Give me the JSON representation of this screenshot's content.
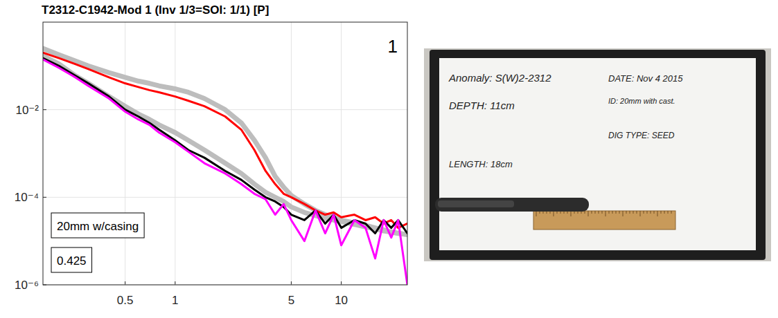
{
  "chart_data": {
    "type": "line",
    "title": "T2312-C1942-Mod 1 (Inv 1/3=SOI: 1/1) [P]",
    "panel_label": "1",
    "annotations": [
      "20mm w/casing",
      "0.425"
    ],
    "log": true,
    "grid": true,
    "x": [
      0.16,
      0.2,
      0.25,
      0.3,
      0.4,
      0.5,
      0.6,
      0.7,
      0.8,
      1,
      1.2,
      1.5,
      2,
      2.5,
      3,
      3.5,
      4,
      4.5,
      5,
      6,
      7,
      8,
      9,
      10,
      12,
      14,
      16,
      18,
      20,
      22,
      25
    ],
    "xlim": [
      0.16,
      25
    ],
    "xticks": [
      0.5,
      1,
      5,
      10
    ],
    "ylim": [
      1e-06,
      1
    ],
    "yticks": [
      {
        "value": 1e-06,
        "label": "10⁻⁶"
      },
      {
        "value": 0.0001,
        "label": "10⁻⁴"
      },
      {
        "value": 0.01,
        "label": "10⁻²"
      }
    ],
    "series": [
      {
        "color": "#bdbdbd",
        "values": [
          0.25,
          0.18,
          0.13,
          0.1,
          0.07,
          0.055,
          0.045,
          0.04,
          0.035,
          0.03,
          0.025,
          0.018,
          0.01,
          0.005,
          0.002,
          0.0008,
          0.0003,
          0.00017,
          0.00011,
          7e-05,
          5e-05,
          4e-05,
          3.5e-05,
          3e-05,
          2.6e-05,
          2.3e-05,
          2e-05,
          1.8e-05,
          1.6e-05,
          1.5e-05,
          1.4e-05
        ]
      },
      {
        "color": "#bdbdbd",
        "values": [
          0.17,
          0.11,
          0.06,
          0.04,
          0.02,
          0.012,
          0.008,
          0.006,
          0.0045,
          0.003,
          0.002,
          0.0012,
          0.0006,
          0.00035,
          0.0002,
          0.00013,
          0.0001,
          8e-05,
          6e-05,
          4.5e-05,
          3.8e-05,
          3.3e-05,
          3e-05,
          2.8e-05,
          2.4e-05,
          2.1e-05,
          1.9e-05,
          1.7e-05,
          1.6e-05,
          1.5e-05,
          1.4e-05
        ]
      },
      {
        "color": "#ff0000",
        "values": [
          0.2,
          0.15,
          0.11,
          0.085,
          0.055,
          0.04,
          0.033,
          0.028,
          0.025,
          0.02,
          0.016,
          0.012,
          0.007,
          0.0035,
          0.0012,
          0.0004,
          0.0002,
          0.00012,
          0.0001,
          7e-05,
          5e-05,
          4e-05,
          4.5e-05,
          3.5e-05,
          4e-05,
          3e-05,
          3.5e-05,
          2.5e-05,
          3e-05,
          2e-05,
          2.5e-05
        ]
      },
      {
        "color": "#000000",
        "values": [
          0.15,
          0.1,
          0.06,
          0.04,
          0.02,
          0.01,
          0.007,
          0.005,
          0.0035,
          0.002,
          0.0012,
          0.0008,
          0.0004,
          0.00025,
          0.00015,
          0.0001,
          8e-05,
          6e-05,
          4e-05,
          3e-05,
          5e-05,
          2.5e-05,
          4e-05,
          2e-05,
          3e-05,
          2.5e-05,
          1.5e-05,
          3e-05,
          2e-05,
          3e-05,
          1.5e-05
        ]
      },
      {
        "color": "#ff00ff",
        "values": [
          0.14,
          0.09,
          0.055,
          0.035,
          0.018,
          0.009,
          0.006,
          0.0045,
          0.003,
          0.0018,
          0.0011,
          0.0006,
          0.00035,
          0.0002,
          0.00012,
          9e-05,
          4e-05,
          7e-05,
          3e-05,
          1e-05,
          5e-05,
          1.5e-05,
          4e-05,
          8e-06,
          3e-05,
          2e-05,
          4e-06,
          3e-05,
          1.2e-05,
          3e-05,
          1e-06
        ]
      }
    ]
  },
  "photo": {
    "texts": [
      "Anomaly: S(W)2-2312",
      "DATE: Nov 4 2015",
      "DEPTH: 11cm",
      "ID: 20mm with cast.",
      "DIG TYPE: SEED",
      "LENGTH: 18cm"
    ]
  }
}
